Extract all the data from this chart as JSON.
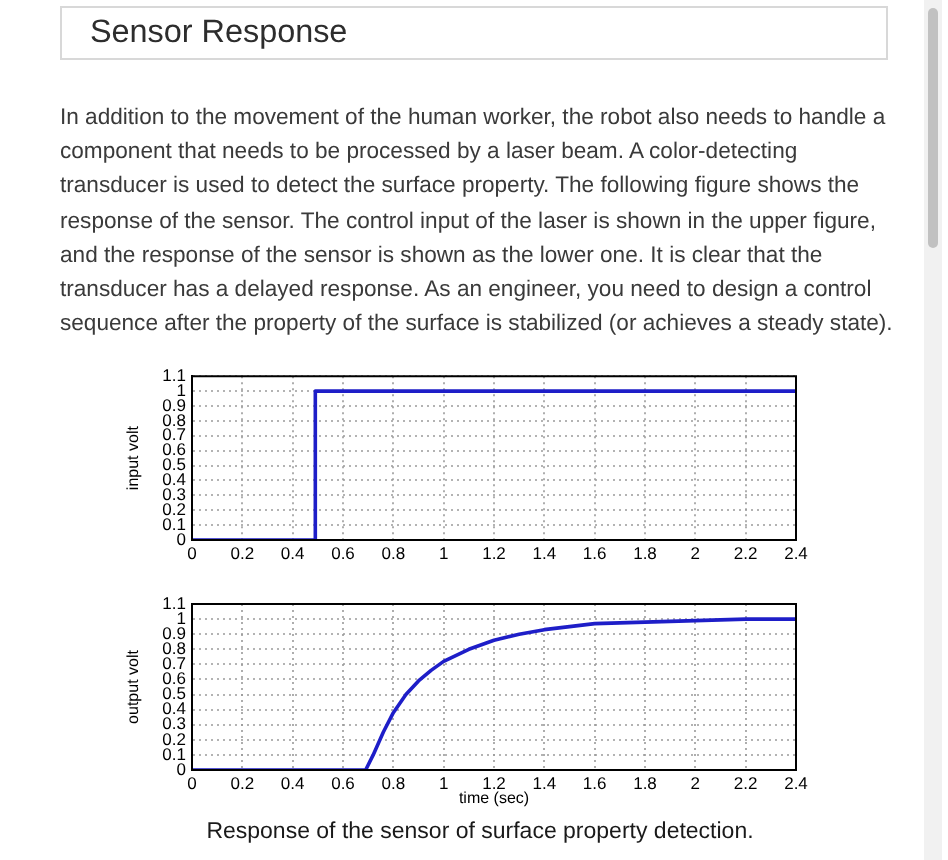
{
  "chart_data": [
    {
      "type": "line",
      "title": "Sensor Response",
      "subtitle": "In addition to the movement of the human worker, the robot also needs to handle a component that needs to be processed by a laser beam. A color-detecting transducer is used to detect the surface property. The following figure shows the response of the sensor. The control input of the laser is shown in the upper figure, and the response of the sensor is shown as the lower one. It is clear that the transducer has a delayed response. As an engineer, you need to design a control sequence after the property of the surface is stabilized (or achieves a steady state).",
      "ylabel": "input volt",
      "x": [
        0,
        0.49,
        0.49,
        2.4
      ],
      "series": [
        {
          "color": "#1e1ec8",
          "values": [
            0,
            0,
            1,
            1
          ]
        }
      ],
      "xlim": [
        0,
        2.4
      ],
      "xticks": [
        0,
        0.2,
        0.4,
        0.6,
        0.8,
        1,
        1.2,
        1.4,
        1.6,
        1.8,
        2,
        2.2,
        2.4
      ],
      "ylim": [
        0,
        1.1
      ],
      "yticks": [
        0,
        0.1,
        0.2,
        0.3,
        0.4,
        0.5,
        0.6,
        0.7,
        0.8,
        0.9,
        1,
        1.1
      ],
      "grid": true
    },
    {
      "type": "line",
      "ylabel": "output volt",
      "xlabel": "time (sec)",
      "x": [
        0,
        0.69,
        0.72,
        0.76,
        0.8,
        0.85,
        0.9,
        0.95,
        1,
        1.1,
        1.2,
        1.3,
        1.4,
        1.5,
        1.6,
        1.8,
        2,
        2.2,
        2.4
      ],
      "series": [
        {
          "color": "#1e1ec8",
          "values": [
            0,
            0,
            0.1,
            0.25,
            0.38,
            0.5,
            0.59,
            0.66,
            0.72,
            0.8,
            0.86,
            0.9,
            0.93,
            0.95,
            0.97,
            0.98,
            0.99,
            1,
            1
          ]
        }
      ],
      "xlim": [
        0,
        2.4
      ],
      "xticks": [
        0,
        0.2,
        0.4,
        0.6,
        0.8,
        1,
        1.2,
        1.4,
        1.6,
        1.8,
        2,
        2.2,
        2.4
      ],
      "ylim": [
        0,
        1.1
      ],
      "yticks": [
        0,
        0.1,
        0.2,
        0.3,
        0.4,
        0.5,
        0.6,
        0.7,
        0.8,
        0.9,
        1,
        1.1
      ],
      "grid": true,
      "annotations": [
        "Response of the sensor of surface property detection."
      ]
    }
  ]
}
